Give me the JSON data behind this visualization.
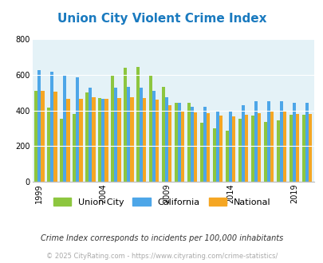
{
  "title": "Union City Violent Crime Index",
  "years": [
    1999,
    2000,
    2001,
    2002,
    2003,
    2004,
    2005,
    2006,
    2007,
    2008,
    2009,
    2010,
    2011,
    2012,
    2013,
    2014,
    2015,
    2016,
    2017,
    2018,
    2019,
    2020
  ],
  "union_city": [
    510,
    415,
    355,
    380,
    500,
    470,
    600,
    640,
    645,
    600,
    535,
    445,
    445,
    330,
    300,
    285,
    355,
    370,
    335,
    345,
    375,
    375
  ],
  "california": [
    625,
    620,
    595,
    585,
    530,
    465,
    530,
    535,
    530,
    510,
    475,
    445,
    420,
    420,
    400,
    395,
    430,
    450,
    450,
    450,
    445,
    445
  ],
  "national": [
    510,
    505,
    465,
    465,
    475,
    465,
    470,
    475,
    470,
    460,
    430,
    400,
    390,
    385,
    370,
    365,
    375,
    385,
    395,
    395,
    380,
    380
  ],
  "colors": {
    "union_city": "#8dc63f",
    "california": "#4da6e8",
    "national": "#f5a623"
  },
  "bg_color": "#e4f2f7",
  "ylim": [
    0,
    800
  ],
  "yticks": [
    0,
    200,
    400,
    600,
    800
  ],
  "x_tick_years": [
    1999,
    2004,
    2009,
    2014,
    2019
  ],
  "legend_labels": [
    "Union City",
    "California",
    "National"
  ],
  "footnote1": "Crime Index corresponds to incidents per 100,000 inhabitants",
  "footnote2": "© 2025 CityRating.com - https://www.cityrating.com/crime-statistics/",
  "title_color": "#1a7abf",
  "footnote1_color": "#333333",
  "footnote2_color": "#aaaaaa",
  "bar_width": 0.26
}
